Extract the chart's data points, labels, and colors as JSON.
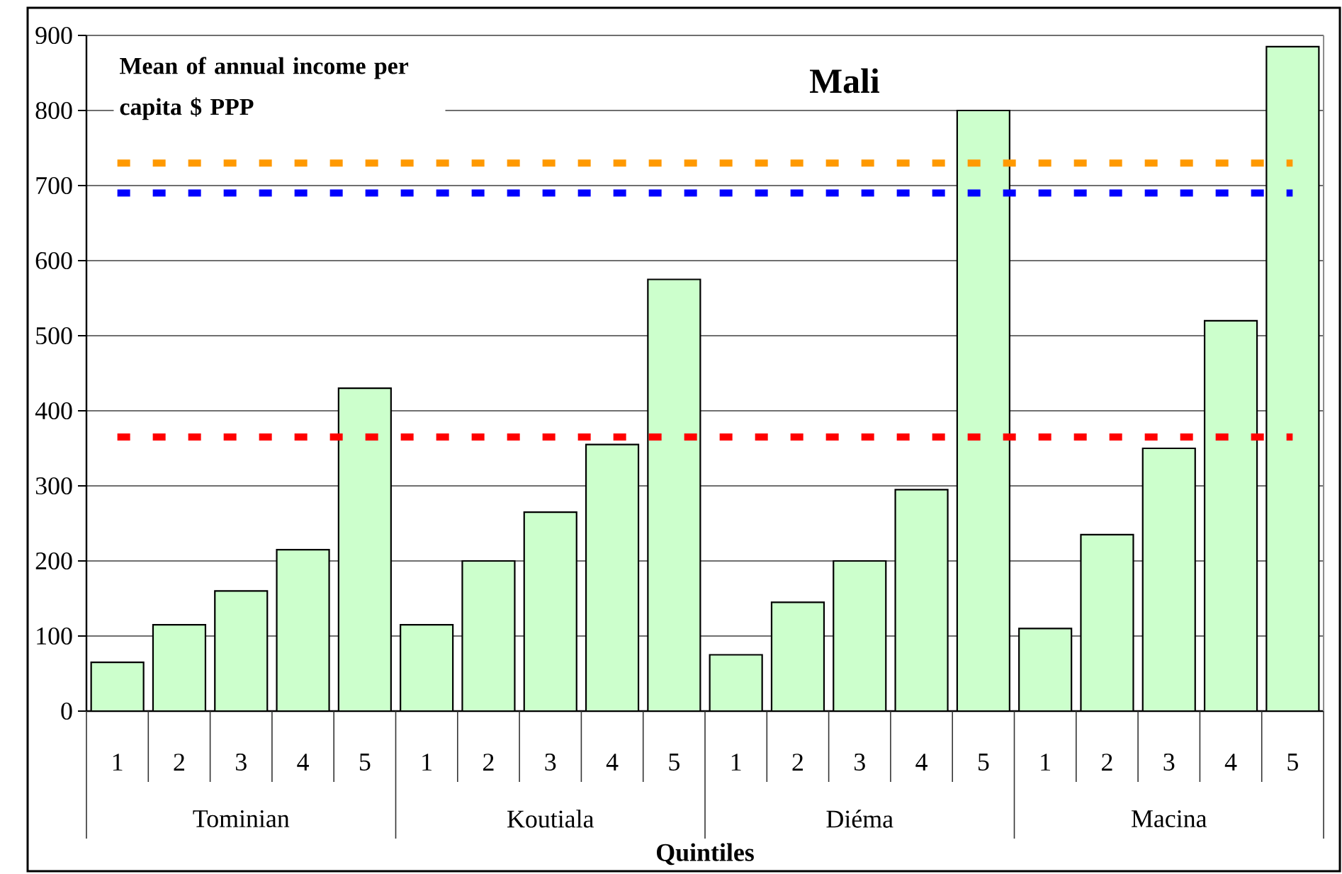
{
  "chart_data": {
    "type": "bar",
    "title": "Mali",
    "xlabel": "Quintiles",
    "ylabel": "Mean of annual income per capita $ PPP",
    "categories": [
      "1",
      "2",
      "3",
      "4",
      "5",
      "1",
      "2",
      "3",
      "4",
      "5",
      "1",
      "2",
      "3",
      "4",
      "5",
      "1",
      "2",
      "3",
      "4",
      "5"
    ],
    "values": [
      65,
      115,
      160,
      215,
      430,
      115,
      200,
      265,
      355,
      575,
      75,
      145,
      200,
      295,
      800,
      110,
      235,
      350,
      520,
      885
    ],
    "color": "#ccffcc",
    "ylim": [
      0,
      900
    ],
    "yticks": [
      0,
      100,
      200,
      300,
      400,
      500,
      600,
      700,
      800,
      900
    ],
    "grid": "y",
    "ref_lines": [
      {
        "axis": "y",
        "value": 730,
        "color": "#ff9900",
        "line_style": "dashed"
      },
      {
        "axis": "y",
        "value": 690,
        "color": "#0000ff",
        "line_style": "dashed"
      },
      {
        "axis": "y",
        "value": 365,
        "color": "#ff0000",
        "line_style": "dashed"
      }
    ],
    "annotations": [
      "Tominian",
      "Koutiala",
      "Diéma",
      "Macina"
    ]
  }
}
